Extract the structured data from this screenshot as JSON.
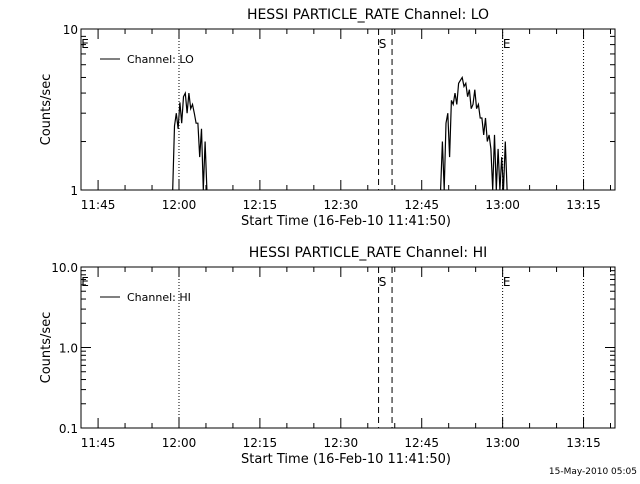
{
  "chart_data": [
    {
      "type": "line",
      "title": "HESSI PARTICLE_RATE Channel: LO",
      "xlabel": "Start Time (16-Feb-10 11:41:50)",
      "ylabel": "Counts/sec",
      "yscale": "log",
      "ylim": [
        1,
        10
      ],
      "xlim": [
        "11:41:50",
        "13:20:50"
      ],
      "x_ticks": [
        "11:45",
        "12:00",
        "12:15",
        "12:30",
        "12:45",
        "13:00",
        "13:15"
      ],
      "y_ticks": [
        "1",
        "10"
      ],
      "legend": {
        "placement": "top-left",
        "entries": [
          "Channel: LO"
        ]
      },
      "markers": [
        {
          "time": "11:41:50",
          "label": "E",
          "style": "dotted"
        },
        {
          "time": "12:00:00",
          "label": "",
          "style": "dotted"
        },
        {
          "time": "12:37:00",
          "label": "S",
          "style": "dashed"
        },
        {
          "time": "12:39:30",
          "label": "",
          "style": "dashed"
        },
        {
          "time": "13:00:00",
          "label": "E",
          "style": "dotted"
        },
        {
          "time": "13:15:00",
          "label": "",
          "style": "dotted"
        }
      ],
      "series": [
        {
          "name": "Channel: LO",
          "segments": [
            {
              "x": [
                "11:58:50",
                "11:59:10",
                "11:59:30",
                "11:59:50",
                "12:00:10",
                "12:00:30",
                "12:00:50",
                "12:01:10",
                "12:01:30",
                "12:01:50",
                "12:02:10",
                "12:02:30",
                "12:02:50",
                "12:03:10",
                "12:03:30",
                "12:03:50",
                "12:04:10",
                "12:04:30",
                "12:04:50",
                "12:05:10"
              ],
              "y": [
                1,
                2.5,
                3.0,
                2.4,
                3.5,
                2.6,
                3.8,
                4.0,
                3.0,
                4.0,
                3.2,
                3.4,
                3.0,
                2.6,
                2.6,
                1.6,
                2.4,
                1.0,
                2.0,
                1.0
              ]
            },
            {
              "x": [
                "12:48:30",
                "12:48:50",
                "12:49:10",
                "12:49:30",
                "12:49:50",
                "12:50:10",
                "12:50:30",
                "12:50:50",
                "12:51:10",
                "12:51:30",
                "12:51:50",
                "12:52:10",
                "12:52:30",
                "12:52:50",
                "12:53:10",
                "12:53:30",
                "12:53:50",
                "12:54:10",
                "12:54:30",
                "12:54:50",
                "12:55:10",
                "12:55:30",
                "12:55:50",
                "12:56:10",
                "12:56:30",
                "12:56:50",
                "12:57:10",
                "12:57:30",
                "12:57:50",
                "12:58:10",
                "12:58:30",
                "12:58:50",
                "12:59:10",
                "12:59:30",
                "12:59:50",
                "13:00:10",
                "13:00:30",
                "13:00:50"
              ],
              "y": [
                1,
                2.0,
                1,
                2.6,
                3.0,
                1.6,
                3.6,
                3.4,
                4.0,
                3.4,
                4.6,
                4.8,
                5.0,
                4.4,
                4.6,
                3.8,
                4.2,
                3.2,
                3.4,
                4.2,
                3.2,
                3.4,
                2.8,
                2.8,
                2.2,
                2.8,
                2.0,
                2.2,
                1.8,
                1.0,
                2.2,
                1.0,
                1.8,
                1.0,
                1.6,
                1.0,
                2.0,
                1.0
              ]
            }
          ]
        }
      ]
    },
    {
      "type": "line",
      "title": "HESSI PARTICLE_RATE Channel: HI",
      "xlabel": "Start Time (16-Feb-10 11:41:50)",
      "ylabel": "Counts/sec",
      "yscale": "log",
      "ylim": [
        0.1,
        10
      ],
      "xlim": [
        "11:41:50",
        "13:20:50"
      ],
      "x_ticks": [
        "11:45",
        "12:00",
        "12:15",
        "12:30",
        "12:45",
        "13:00",
        "13:15"
      ],
      "y_ticks": [
        "0.1",
        "1.0",
        "10.0"
      ],
      "legend": {
        "placement": "top-left",
        "entries": [
          "Channel: HI"
        ]
      },
      "markers": [
        {
          "time": "11:41:50",
          "label": "E",
          "style": "dotted"
        },
        {
          "time": "12:00:00",
          "label": "",
          "style": "dotted"
        },
        {
          "time": "12:37:00",
          "label": "S",
          "style": "dashed"
        },
        {
          "time": "12:39:30",
          "label": "",
          "style": "dashed"
        },
        {
          "time": "13:00:00",
          "label": "E",
          "style": "dotted"
        },
        {
          "time": "13:15:00",
          "label": "",
          "style": "dotted"
        }
      ],
      "series": [
        {
          "name": "Channel: HI",
          "segments": []
        }
      ]
    }
  ],
  "footer": {
    "timestamp": "15-May-2010 05:05"
  }
}
